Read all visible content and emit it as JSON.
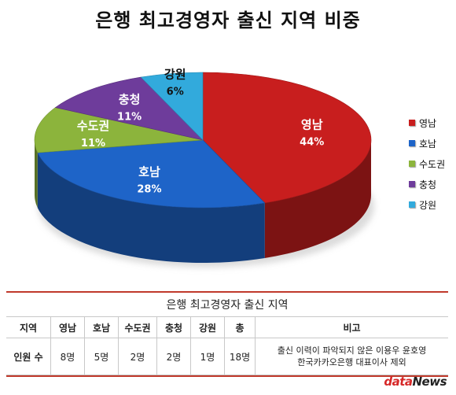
{
  "chart_data": {
    "type": "pie",
    "title": "은행 최고경영자 출신 지역 비중",
    "categories": [
      "영남",
      "호남",
      "수도권",
      "충청",
      "강원"
    ],
    "values": [
      44,
      28,
      11,
      11,
      6
    ],
    "labels": [
      "44%",
      "28%",
      "11%",
      "11%",
      "6%"
    ],
    "colors": [
      "#c81e1e",
      "#1e64c8",
      "#8cb43c",
      "#6e3c9b",
      "#32aadc"
    ],
    "legend": "right",
    "style": "3d"
  },
  "table": {
    "caption": "은행 최고경영자 출신 지역",
    "headers": [
      "지역",
      "영남",
      "호남",
      "수도권",
      "충청",
      "강원",
      "총",
      "비고"
    ],
    "row": [
      "인원 수",
      "8명",
      "5명",
      "2명",
      "2명",
      "1명",
      "18명"
    ],
    "note_line1": "출신 이력이 파악되지 않은 이용우 윤호영",
    "note_line2": "한국카카오은행 대표이사 제외"
  },
  "logo": {
    "part1": "data",
    "part2": "News"
  }
}
